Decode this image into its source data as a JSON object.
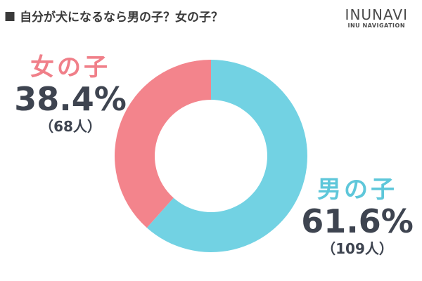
{
  "header": {
    "bullet": "■",
    "title": "自分が犬になるなら男の子？女の子？"
  },
  "logo": {
    "main": "INUNAVI",
    "sub": "INU NAVIGATION"
  },
  "chart_data": {
    "type": "pie",
    "donut": true,
    "categories": [
      "男の子",
      "女の子"
    ],
    "values": [
      61.6,
      38.4
    ],
    "counts": [
      109,
      68
    ],
    "colors": [
      "#72d2e3",
      "#f3848c"
    ],
    "percent_labels": [
      "61.6%",
      "38.4%"
    ],
    "count_labels": [
      "（109人）",
      "（68人）"
    ],
    "label_colors": [
      "#5ec7da",
      "#f07f89"
    ]
  }
}
